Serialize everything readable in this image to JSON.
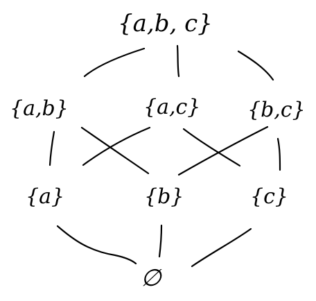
{
  "diagram": {
    "nodes": [
      {
        "id": "abc",
        "label": "{a,b, c}"
      },
      {
        "id": "ab",
        "label": "{a,b}"
      },
      {
        "id": "ac",
        "label": "{a,c}"
      },
      {
        "id": "bc",
        "label": "{b,c}"
      },
      {
        "id": "a",
        "label": "{a}"
      },
      {
        "id": "b",
        "label": "{b}"
      },
      {
        "id": "c",
        "label": "{c}"
      },
      {
        "id": "empty",
        "label": "∅"
      }
    ],
    "edges": [
      {
        "from": "abc",
        "to": "ab"
      },
      {
        "from": "abc",
        "to": "ac"
      },
      {
        "from": "abc",
        "to": "bc"
      },
      {
        "from": "ab",
        "to": "a"
      },
      {
        "from": "ab",
        "to": "b"
      },
      {
        "from": "ac",
        "to": "a"
      },
      {
        "from": "ac",
        "to": "c"
      },
      {
        "from": "bc",
        "to": "b"
      },
      {
        "from": "bc",
        "to": "c"
      },
      {
        "from": "a",
        "to": "empty"
      },
      {
        "from": "b",
        "to": "empty"
      },
      {
        "from": "c",
        "to": "empty"
      }
    ],
    "colors": {
      "ink": "#000000",
      "background": "#ffffff"
    }
  }
}
